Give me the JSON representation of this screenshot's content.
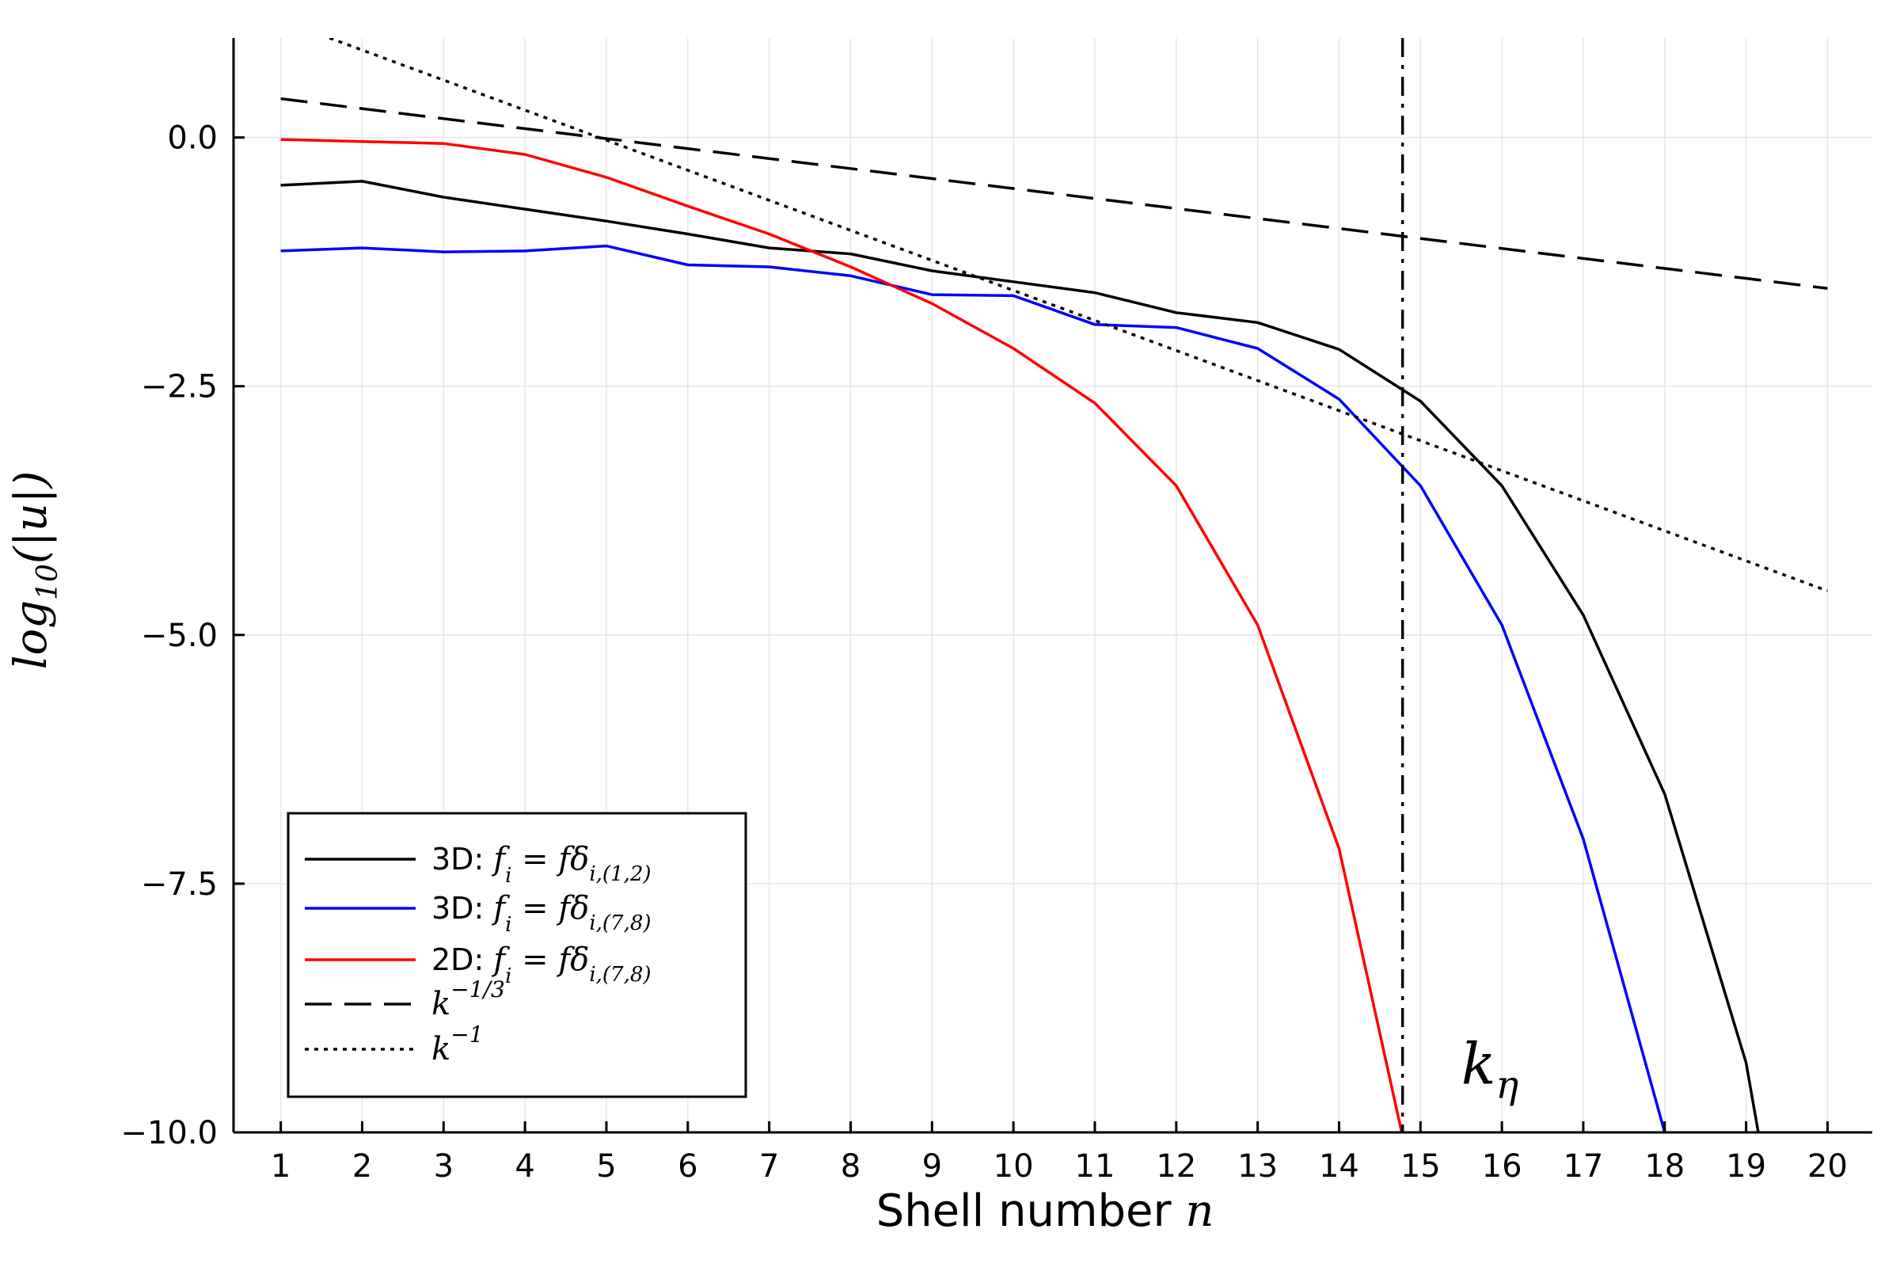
{
  "chart_data": {
    "type": "line",
    "xlabel": "Shell number ",
    "xlabel_math": "n",
    "ylabel_math": "log",
    "ylabel_sub": "10",
    "ylabel_rest": "(|u|)",
    "xlim": [
      0.42,
      20.55
    ],
    "ylim": [
      -10.0,
      1.0
    ],
    "x_ticks": [
      1,
      2,
      3,
      4,
      5,
      6,
      7,
      8,
      9,
      10,
      11,
      12,
      13,
      14,
      15,
      16,
      17,
      18,
      19,
      20
    ],
    "y_ticks": [
      0.0,
      -2.5,
      -5.0,
      -7.5,
      -10.0
    ],
    "y_tick_labels": [
      "0.0",
      "−2.5",
      "−5.0",
      "−7.5",
      "−10.0"
    ],
    "grid": true,
    "legend_position": "bottom-left",
    "series": [
      {
        "name_prefix": "3D: ",
        "name_math": "f",
        "name_math_sub": "i",
        "name_math_eq": " = fδ",
        "name_math_idx": "i,(1,2)",
        "color": "#000000",
        "style": "solid",
        "x": [
          1,
          2,
          3,
          4,
          5,
          6,
          7,
          8,
          9,
          10,
          11,
          12,
          13,
          14,
          15,
          16,
          17,
          18,
          19,
          19.15
        ],
        "y": [
          -0.48,
          -0.44,
          -0.6,
          -0.72,
          -0.84,
          -0.97,
          -1.11,
          -1.17,
          -1.34,
          -1.45,
          -1.56,
          -1.76,
          -1.86,
          -2.13,
          -2.65,
          -3.5,
          -4.8,
          -6.6,
          -9.3,
          -10.0
        ]
      },
      {
        "name_prefix": "3D: ",
        "name_math": "f",
        "name_math_sub": "i",
        "name_math_eq": " = fδ",
        "name_math_idx": "i,(7,8)",
        "color": "#0000ff",
        "style": "solid",
        "x": [
          1,
          2,
          3,
          4,
          5,
          6,
          7,
          8,
          9,
          10,
          11,
          12,
          13,
          14,
          15,
          16,
          17,
          18,
          17.9
        ],
        "y": [
          -1.14,
          -1.11,
          -1.15,
          -1.14,
          -1.09,
          -1.28,
          -1.3,
          -1.39,
          -1.58,
          -1.59,
          -1.88,
          -1.91,
          -2.12,
          -2.63,
          -3.5,
          -4.9,
          -7.05,
          -10.0,
          -10.0
        ],
        "trim": 18
      },
      {
        "name_prefix": "2D: ",
        "name_math": "f",
        "name_math_sub": "i",
        "name_math_eq": " = fδ",
        "name_math_idx": "i,(7,8)",
        "color": "#ff0000",
        "style": "solid",
        "x": [
          1,
          2,
          3,
          4,
          5,
          6,
          7,
          8,
          9,
          10,
          11,
          12,
          13,
          14,
          14.77
        ],
        "y": [
          -0.02,
          -0.04,
          -0.06,
          -0.17,
          -0.4,
          -0.69,
          -0.97,
          -1.3,
          -1.67,
          -2.12,
          -2.67,
          -3.5,
          -4.9,
          -7.15,
          -10.0
        ]
      },
      {
        "name_math": "k",
        "name_sup": "−1/3",
        "color": "#000000",
        "style": "dashed",
        "x": [
          1,
          20
        ],
        "y": [
          0.39,
          -1.517
        ]
      },
      {
        "name_math": "k",
        "name_sup": "−1",
        "color": "#000000",
        "style": "dotted",
        "x": [
          1.6,
          20
        ],
        "y": [
          1.0,
          -4.557
        ]
      }
    ],
    "annotations": [
      {
        "type": "vline",
        "x": 14.78,
        "style": "dashdot",
        "color": "#000000"
      },
      {
        "type": "text",
        "text": "k",
        "sub": "η",
        "x": 15.5,
        "y": -9.4
      }
    ]
  }
}
